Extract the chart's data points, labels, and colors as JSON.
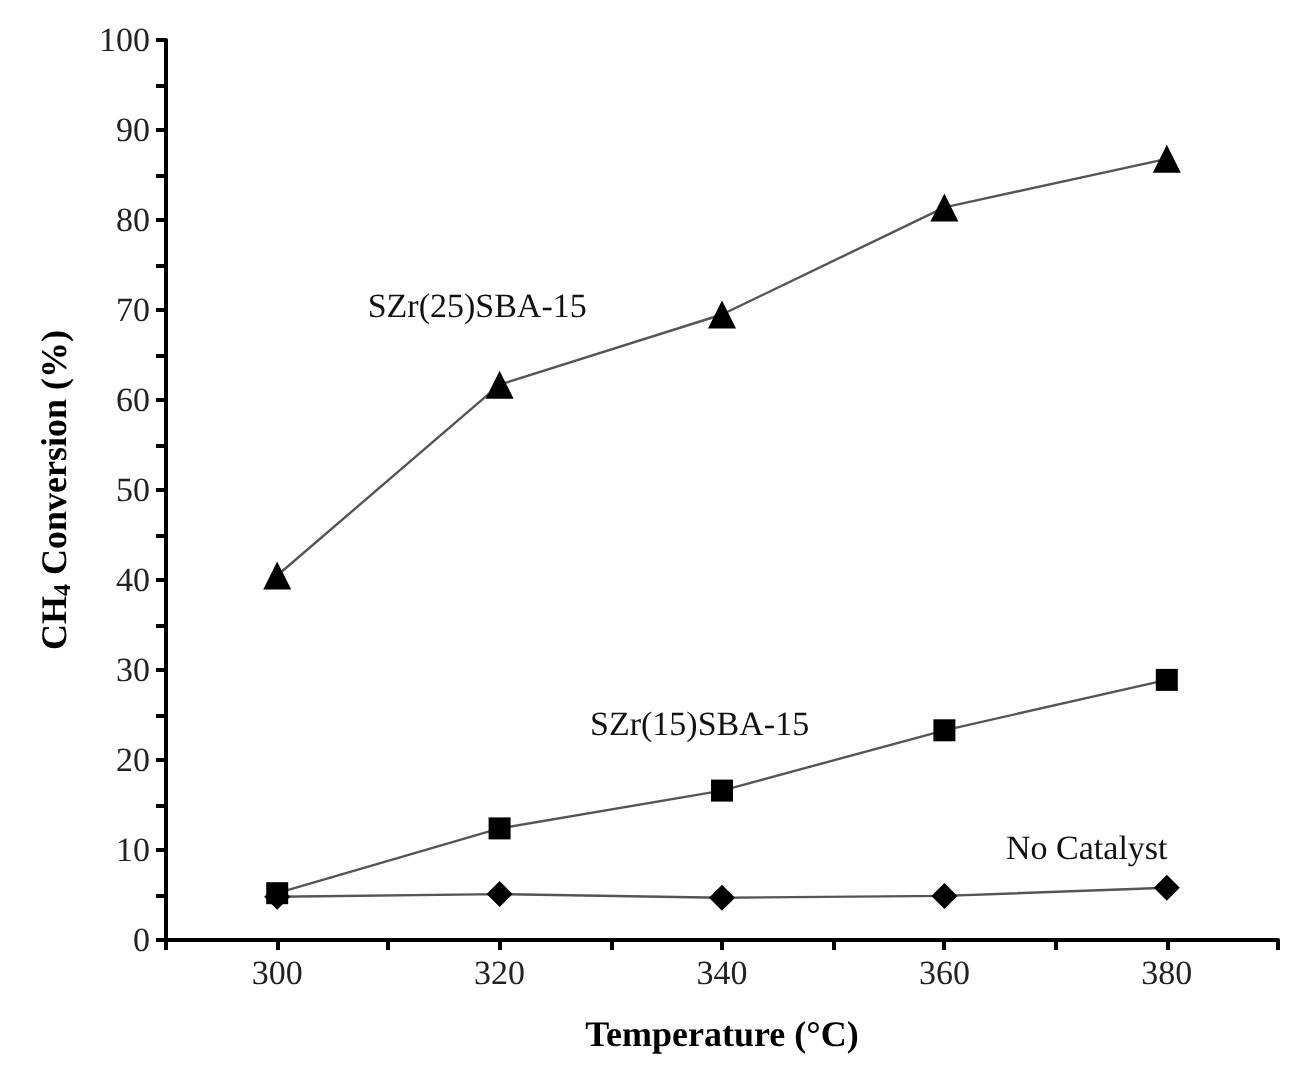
{
  "chart_data": {
    "type": "line",
    "xlabel": "Temperature (°C)",
    "ylabel": "CH$_{4}$ Conversion (%)",
    "x": [
      300,
      320,
      340,
      360,
      380
    ],
    "xlim": [
      290,
      390
    ],
    "xticks": [
      300,
      320,
      340,
      360,
      380
    ],
    "ylim": [
      0,
      100
    ],
    "yticks": [
      0,
      10,
      20,
      30,
      40,
      50,
      60,
      70,
      80,
      90,
      100
    ],
    "grid": false,
    "legend": false,
    "line_style": "solid",
    "series": [
      {
        "name": "SZr(25)SBA-15",
        "color": "#000000",
        "marker": "triangle",
        "values": [
          40.5,
          61.7,
          69.5,
          81.4,
          86.8
        ]
      },
      {
        "name": "SZr(15)SBA-15",
        "color": "#000000",
        "marker": "square",
        "values": [
          5.2,
          12.4,
          16.6,
          23.3,
          28.9
        ]
      },
      {
        "name": "No Catalyst",
        "color": "#000000",
        "marker": "diamond",
        "values": [
          4.8,
          5.1,
          4.7,
          4.9,
          5.8
        ]
      }
    ]
  }
}
